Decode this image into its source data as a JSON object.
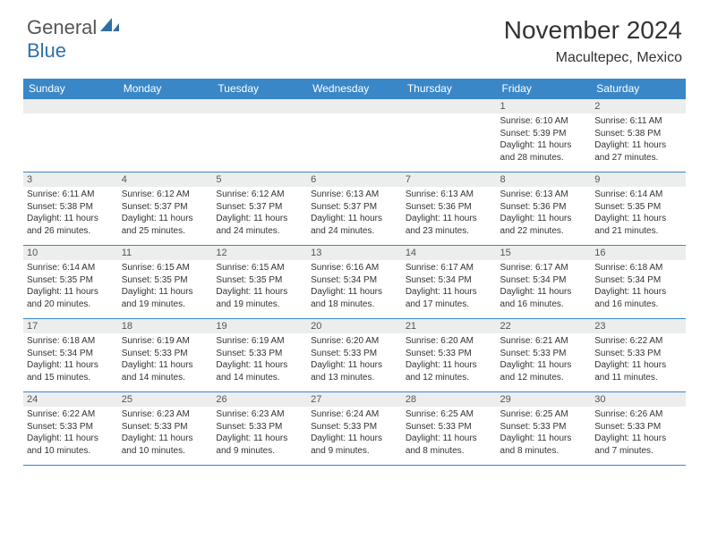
{
  "logo": {
    "text1": "General",
    "text2": "Blue"
  },
  "title": "November 2024",
  "location": "Macultepec, Mexico",
  "colors": {
    "headerBg": "#3a87c8",
    "headerText": "#ffffff",
    "dayStripBg": "#eceded",
    "borderColor": "#3a87c8",
    "bodyText": "#333333",
    "logoBlue": "#2f6fa8"
  },
  "weekdays": [
    "Sunday",
    "Monday",
    "Tuesday",
    "Wednesday",
    "Thursday",
    "Friday",
    "Saturday"
  ],
  "weeks": [
    [
      {
        "day": "",
        "lines": []
      },
      {
        "day": "",
        "lines": []
      },
      {
        "day": "",
        "lines": []
      },
      {
        "day": "",
        "lines": []
      },
      {
        "day": "",
        "lines": []
      },
      {
        "day": "1",
        "lines": [
          "Sunrise: 6:10 AM",
          "Sunset: 5:39 PM",
          "Daylight: 11 hours",
          "and 28 minutes."
        ]
      },
      {
        "day": "2",
        "lines": [
          "Sunrise: 6:11 AM",
          "Sunset: 5:38 PM",
          "Daylight: 11 hours",
          "and 27 minutes."
        ]
      }
    ],
    [
      {
        "day": "3",
        "lines": [
          "Sunrise: 6:11 AM",
          "Sunset: 5:38 PM",
          "Daylight: 11 hours",
          "and 26 minutes."
        ]
      },
      {
        "day": "4",
        "lines": [
          "Sunrise: 6:12 AM",
          "Sunset: 5:37 PM",
          "Daylight: 11 hours",
          "and 25 minutes."
        ]
      },
      {
        "day": "5",
        "lines": [
          "Sunrise: 6:12 AM",
          "Sunset: 5:37 PM",
          "Daylight: 11 hours",
          "and 24 minutes."
        ]
      },
      {
        "day": "6",
        "lines": [
          "Sunrise: 6:13 AM",
          "Sunset: 5:37 PM",
          "Daylight: 11 hours",
          "and 24 minutes."
        ]
      },
      {
        "day": "7",
        "lines": [
          "Sunrise: 6:13 AM",
          "Sunset: 5:36 PM",
          "Daylight: 11 hours",
          "and 23 minutes."
        ]
      },
      {
        "day": "8",
        "lines": [
          "Sunrise: 6:13 AM",
          "Sunset: 5:36 PM",
          "Daylight: 11 hours",
          "and 22 minutes."
        ]
      },
      {
        "day": "9",
        "lines": [
          "Sunrise: 6:14 AM",
          "Sunset: 5:35 PM",
          "Daylight: 11 hours",
          "and 21 minutes."
        ]
      }
    ],
    [
      {
        "day": "10",
        "lines": [
          "Sunrise: 6:14 AM",
          "Sunset: 5:35 PM",
          "Daylight: 11 hours",
          "and 20 minutes."
        ]
      },
      {
        "day": "11",
        "lines": [
          "Sunrise: 6:15 AM",
          "Sunset: 5:35 PM",
          "Daylight: 11 hours",
          "and 19 minutes."
        ]
      },
      {
        "day": "12",
        "lines": [
          "Sunrise: 6:15 AM",
          "Sunset: 5:35 PM",
          "Daylight: 11 hours",
          "and 19 minutes."
        ]
      },
      {
        "day": "13",
        "lines": [
          "Sunrise: 6:16 AM",
          "Sunset: 5:34 PM",
          "Daylight: 11 hours",
          "and 18 minutes."
        ]
      },
      {
        "day": "14",
        "lines": [
          "Sunrise: 6:17 AM",
          "Sunset: 5:34 PM",
          "Daylight: 11 hours",
          "and 17 minutes."
        ]
      },
      {
        "day": "15",
        "lines": [
          "Sunrise: 6:17 AM",
          "Sunset: 5:34 PM",
          "Daylight: 11 hours",
          "and 16 minutes."
        ]
      },
      {
        "day": "16",
        "lines": [
          "Sunrise: 6:18 AM",
          "Sunset: 5:34 PM",
          "Daylight: 11 hours",
          "and 16 minutes."
        ]
      }
    ],
    [
      {
        "day": "17",
        "lines": [
          "Sunrise: 6:18 AM",
          "Sunset: 5:34 PM",
          "Daylight: 11 hours",
          "and 15 minutes."
        ]
      },
      {
        "day": "18",
        "lines": [
          "Sunrise: 6:19 AM",
          "Sunset: 5:33 PM",
          "Daylight: 11 hours",
          "and 14 minutes."
        ]
      },
      {
        "day": "19",
        "lines": [
          "Sunrise: 6:19 AM",
          "Sunset: 5:33 PM",
          "Daylight: 11 hours",
          "and 14 minutes."
        ]
      },
      {
        "day": "20",
        "lines": [
          "Sunrise: 6:20 AM",
          "Sunset: 5:33 PM",
          "Daylight: 11 hours",
          "and 13 minutes."
        ]
      },
      {
        "day": "21",
        "lines": [
          "Sunrise: 6:20 AM",
          "Sunset: 5:33 PM",
          "Daylight: 11 hours",
          "and 12 minutes."
        ]
      },
      {
        "day": "22",
        "lines": [
          "Sunrise: 6:21 AM",
          "Sunset: 5:33 PM",
          "Daylight: 11 hours",
          "and 12 minutes."
        ]
      },
      {
        "day": "23",
        "lines": [
          "Sunrise: 6:22 AM",
          "Sunset: 5:33 PM",
          "Daylight: 11 hours",
          "and 11 minutes."
        ]
      }
    ],
    [
      {
        "day": "24",
        "lines": [
          "Sunrise: 6:22 AM",
          "Sunset: 5:33 PM",
          "Daylight: 11 hours",
          "and 10 minutes."
        ]
      },
      {
        "day": "25",
        "lines": [
          "Sunrise: 6:23 AM",
          "Sunset: 5:33 PM",
          "Daylight: 11 hours",
          "and 10 minutes."
        ]
      },
      {
        "day": "26",
        "lines": [
          "Sunrise: 6:23 AM",
          "Sunset: 5:33 PM",
          "Daylight: 11 hours",
          "and 9 minutes."
        ]
      },
      {
        "day": "27",
        "lines": [
          "Sunrise: 6:24 AM",
          "Sunset: 5:33 PM",
          "Daylight: 11 hours",
          "and 9 minutes."
        ]
      },
      {
        "day": "28",
        "lines": [
          "Sunrise: 6:25 AM",
          "Sunset: 5:33 PM",
          "Daylight: 11 hours",
          "and 8 minutes."
        ]
      },
      {
        "day": "29",
        "lines": [
          "Sunrise: 6:25 AM",
          "Sunset: 5:33 PM",
          "Daylight: 11 hours",
          "and 8 minutes."
        ]
      },
      {
        "day": "30",
        "lines": [
          "Sunrise: 6:26 AM",
          "Sunset: 5:33 PM",
          "Daylight: 11 hours",
          "and 7 minutes."
        ]
      }
    ]
  ]
}
